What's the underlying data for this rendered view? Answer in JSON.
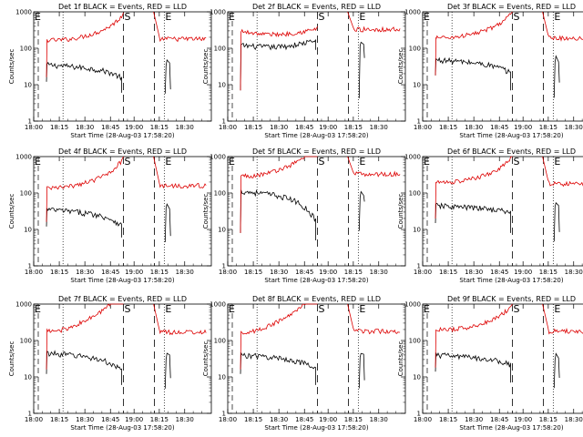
{
  "chart_data": [
    {
      "type": "line",
      "title": "Det 1f BLACK = Events, RED = LLD",
      "xlabel": "Start Time (28-Aug-03 17:58:20)",
      "ylabel": "Counts/sec",
      "yscale": "log",
      "ylim": [
        1,
        1000
      ],
      "x_ticks": [
        "18:00",
        "18:15",
        "18:30",
        "18:45",
        "19:00",
        "18:15",
        "18:30"
      ],
      "y_ticks": [
        "1",
        "10",
        "100",
        "1000"
      ],
      "markers": {
        "start": "S",
        "end": "E"
      },
      "series": [
        {
          "name": "Events",
          "color": "#000000"
        },
        {
          "name": "LLD",
          "color": "#dd0000"
        }
      ],
      "params": {
        "black": [
          35,
          24,
          12,
          6,
          22,
          5,
          12,
          42,
          8
        ],
        "red": [
          170,
          130,
          16,
          12,
          800,
          175,
          60,
          180,
          10
        ],
        "shape": "concave"
      }
    },
    {
      "type": "line",
      "title": "Det 2f BLACK = Events, RED = LLD",
      "xlabel": "Start Time (28-Aug-03 17:58:20)",
      "ylabel": "Counts/sec",
      "yscale": "log",
      "ylim": [
        1,
        1000
      ],
      "x_ticks": [
        "18:00",
        "18:15",
        "18:30",
        "18:45",
        "19:00",
        "18:15",
        "18:30"
      ],
      "y_ticks": [
        "1",
        "10",
        "100",
        "1000"
      ],
      "markers": {
        "start": "S",
        "end": "E"
      },
      "series": [
        {
          "name": "Events",
          "color": "#000000"
        },
        {
          "name": "LLD",
          "color": "#dd0000"
        }
      ],
      "params": {
        "black": [
          120,
          90,
          7,
          90,
          160,
          5,
          100,
          130,
          9
        ],
        "red": [
          290,
          230,
          7,
          240,
          330,
          900,
          330,
          330,
          12
        ],
        "shape": "bowl"
      }
    },
    {
      "type": "line",
      "title": "Det 3f BLACK = Events, RED = LLD",
      "xlabel": "Start Time (28-Aug-03 17:58:20)",
      "ylabel": "Counts/sec",
      "yscale": "log",
      "ylim": [
        1,
        1000
      ],
      "x_ticks": [
        "18:00",
        "18:15",
        "18:30",
        "18:45",
        "19:00",
        "18:15",
        "18:30"
      ],
      "y_ticks": [
        "1",
        "10",
        "100",
        "1000"
      ],
      "markers": {
        "start": "S",
        "end": "E"
      },
      "series": [
        {
          "name": "Events",
          "color": "#000000"
        },
        {
          "name": "LLD",
          "color": "#dd0000"
        }
      ],
      "params": {
        "black": [
          48,
          30,
          18,
          7,
          30,
          5,
          18,
          55,
          10
        ],
        "red": [
          200,
          150,
          18,
          15,
          900,
          200,
          70,
          190,
          10
        ],
        "shape": "concave"
      }
    },
    {
      "type": "line",
      "title": "Det 4f BLACK = Events, RED = LLD",
      "xlabel": "Start Time (28-Aug-03 17:58:20)",
      "ylabel": "Counts/sec",
      "yscale": "log",
      "ylim": [
        1,
        1000
      ],
      "x_ticks": [
        "18:00",
        "18:15",
        "18:30",
        "18:45",
        "19:00",
        "18:15",
        "18:30"
      ],
      "y_ticks": [
        "1",
        "10",
        "100",
        "1000"
      ],
      "markers": {
        "start": "S",
        "end": "E"
      },
      "series": [
        {
          "name": "Events",
          "color": "#000000"
        },
        {
          "name": "LLD",
          "color": "#dd0000"
        }
      ],
      "params": {
        "black": [
          35,
          30,
          12,
          6,
          20,
          5,
          12,
          45,
          8
        ],
        "red": [
          140,
          120,
          16,
          12,
          850,
          200,
          70,
          160,
          10
        ],
        "shape": "concave"
      }
    },
    {
      "type": "line",
      "title": "Det 5f BLACK = Events, RED = LLD",
      "xlabel": "Start Time (28-Aug-03 17:58:20)",
      "ylabel": "Counts/sec",
      "yscale": "log",
      "ylim": [
        1,
        1000
      ],
      "x_ticks": [
        "18:00",
        "18:15",
        "18:30",
        "18:45",
        "19:00",
        "18:15",
        "18:30"
      ],
      "y_ticks": [
        "1",
        "10",
        "100",
        "1000"
      ],
      "markers": {
        "start": "S",
        "end": "E"
      },
      "series": [
        {
          "name": "Events",
          "color": "#000000"
        },
        {
          "name": "LLD",
          "color": "#dd0000"
        }
      ],
      "params": {
        "black": [
          110,
          70,
          8,
          5,
          40,
          10,
          90,
          100,
          8
        ],
        "red": [
          300,
          250,
          8,
          20,
          900,
          400,
          150,
          330,
          12
        ],
        "shape": "concave"
      }
    },
    {
      "type": "line",
      "title": "Det 6f BLACK = Events, RED = LLD",
      "xlabel": "Start Time (28-Aug-03 17:58:20)",
      "ylabel": "Counts/sec",
      "yscale": "log",
      "ylim": [
        1,
        1000
      ],
      "x_ticks": [
        "18:00",
        "18:15",
        "18:30",
        "18:45",
        "19:00",
        "18:15",
        "18:30"
      ],
      "y_ticks": [
        "1",
        "10",
        "100",
        "1000"
      ],
      "markers": {
        "start": "S",
        "end": "E"
      },
      "series": [
        {
          "name": "Events",
          "color": "#000000"
        },
        {
          "name": "LLD",
          "color": "#dd0000"
        }
      ],
      "params": {
        "black": [
          45,
          28,
          15,
          8,
          35,
          5,
          15,
          50,
          10
        ],
        "red": [
          200,
          150,
          20,
          15,
          900,
          200,
          70,
          180,
          12
        ],
        "shape": "concave"
      }
    },
    {
      "type": "line",
      "title": "Det 7f BLACK = Events, RED = LLD",
      "xlabel": "Start Time (28-Aug-03 17:58:20)",
      "ylabel": "Counts/sec",
      "yscale": "log",
      "ylim": [
        1,
        1000
      ],
      "x_ticks": [
        "18:00",
        "18:15",
        "18:30",
        "18:45",
        "19:00",
        "18:15",
        "18:30"
      ],
      "y_ticks": [
        "1",
        "10",
        "100",
        "1000"
      ],
      "markers": {
        "start": "S",
        "end": "E"
      },
      "series": [
        {
          "name": "Events",
          "color": "#000000"
        },
        {
          "name": "LLD",
          "color": "#dd0000"
        }
      ],
      "params": {
        "black": [
          45,
          32,
          12,
          6,
          24,
          5,
          14,
          42,
          10
        ],
        "red": [
          180,
          150,
          16,
          12,
          850,
          200,
          70,
          170,
          12
        ],
        "shape": "concave"
      }
    },
    {
      "type": "line",
      "title": "Det 8f BLACK = Events, RED = LLD",
      "xlabel": "Start Time (28-Aug-03 17:58:20)",
      "ylabel": "Counts/sec",
      "yscale": "log",
      "ylim": [
        1,
        1000
      ],
      "x_ticks": [
        "18:00",
        "18:15",
        "18:30",
        "18:45",
        "19:00",
        "18:15",
        "18:30"
      ],
      "y_ticks": [
        "1",
        "10",
        "100",
        "1000"
      ],
      "markers": {
        "start": "S",
        "end": "E"
      },
      "series": [
        {
          "name": "Events",
          "color": "#000000"
        },
        {
          "name": "LLD",
          "color": "#dd0000"
        }
      ],
      "params": {
        "black": [
          40,
          30,
          12,
          6,
          24,
          5,
          14,
          42,
          10
        ],
        "red": [
          170,
          150,
          16,
          12,
          850,
          200,
          70,
          180,
          12
        ],
        "shape": "concave"
      }
    },
    {
      "type": "line",
      "title": "Det 9f BLACK = Events, RED = LLD",
      "xlabel": "Start Time (28-Aug-03 17:58:20)",
      "ylabel": "Counts/sec",
      "yscale": "log",
      "ylim": [
        1,
        1000
      ],
      "x_ticks": [
        "18:00",
        "18:15",
        "18:30",
        "18:45",
        "19:00",
        "18:15",
        "18:30"
      ],
      "y_ticks": [
        "1",
        "10",
        "100",
        "1000"
      ],
      "markers": {
        "start": "S",
        "end": "E"
      },
      "series": [
        {
          "name": "Events",
          "color": "#000000"
        },
        {
          "name": "LLD",
          "color": "#dd0000"
        }
      ],
      "params": {
        "black": [
          40,
          30,
          14,
          7,
          28,
          5,
          14,
          42,
          10
        ],
        "red": [
          200,
          150,
          18,
          14,
          900,
          200,
          70,
          180,
          12
        ],
        "shape": "concave"
      }
    }
  ]
}
